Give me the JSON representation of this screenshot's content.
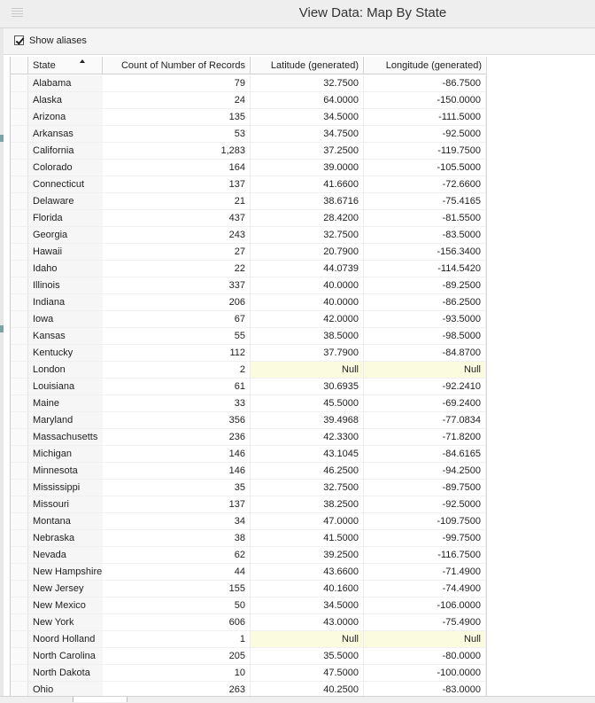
{
  "window": {
    "title": "View Data:  Map By State"
  },
  "toolbar": {
    "show_aliases_label": "Show aliases",
    "show_aliases_checked": true
  },
  "table": {
    "columns": [
      "State",
      "Count of Number of Records",
      "Latitude (generated)",
      "Longitude (generated)"
    ],
    "sorted_column": "State",
    "sort_direction": "ascending",
    "rows": [
      [
        "Alabama",
        "79",
        "32.7500",
        "-86.7500"
      ],
      [
        "Alaska",
        "24",
        "64.0000",
        "-150.0000"
      ],
      [
        "Arizona",
        "135",
        "34.5000",
        "-111.5000"
      ],
      [
        "Arkansas",
        "53",
        "34.7500",
        "-92.5000"
      ],
      [
        "California",
        "1,283",
        "37.2500",
        "-119.7500"
      ],
      [
        "Colorado",
        "164",
        "39.0000",
        "-105.5000"
      ],
      [
        "Connecticut",
        "137",
        "41.6600",
        "-72.6600"
      ],
      [
        "Delaware",
        "21",
        "38.6716",
        "-75.4165"
      ],
      [
        "Florida",
        "437",
        "28.4200",
        "-81.5500"
      ],
      [
        "Georgia",
        "243",
        "32.7500",
        "-83.5000"
      ],
      [
        "Hawaii",
        "27",
        "20.7900",
        "-156.3400"
      ],
      [
        "Idaho",
        "22",
        "44.0739",
        "-114.5420"
      ],
      [
        "Illinois",
        "337",
        "40.0000",
        "-89.2500"
      ],
      [
        "Indiana",
        "206",
        "40.0000",
        "-86.2500"
      ],
      [
        "Iowa",
        "67",
        "42.0000",
        "-93.5000"
      ],
      [
        "Kansas",
        "55",
        "38.5000",
        "-98.5000"
      ],
      [
        "Kentucky",
        "112",
        "37.7900",
        "-84.8700"
      ],
      [
        "London",
        "2",
        "Null",
        "Null"
      ],
      [
        "Louisiana",
        "61",
        "30.6935",
        "-92.2410"
      ],
      [
        "Maine",
        "33",
        "45.5000",
        "-69.2400"
      ],
      [
        "Maryland",
        "356",
        "39.4968",
        "-77.0834"
      ],
      [
        "Massachusetts",
        "236",
        "42.3300",
        "-71.8200"
      ],
      [
        "Michigan",
        "146",
        "43.1045",
        "-84.6165"
      ],
      [
        "Minnesota",
        "146",
        "46.2500",
        "-94.2500"
      ],
      [
        "Mississippi",
        "35",
        "32.7500",
        "-89.7500"
      ],
      [
        "Missouri",
        "137",
        "38.2500",
        "-92.5000"
      ],
      [
        "Montana",
        "34",
        "47.0000",
        "-109.7500"
      ],
      [
        "Nebraska",
        "38",
        "41.5000",
        "-99.7500"
      ],
      [
        "Nevada",
        "62",
        "39.2500",
        "-116.7500"
      ],
      [
        "New Hampshire",
        "44",
        "43.6600",
        "-71.4900"
      ],
      [
        "New Jersey",
        "155",
        "40.1600",
        "-74.4900"
      ],
      [
        "New Mexico",
        "50",
        "34.5000",
        "-106.0000"
      ],
      [
        "New York",
        "606",
        "43.0000",
        "-75.4900"
      ],
      [
        "Noord Holland",
        "1",
        "Null",
        "Null"
      ],
      [
        "North Carolina",
        "205",
        "35.5000",
        "-80.0000"
      ],
      [
        "North Dakota",
        "10",
        "47.5000",
        "-100.0000"
      ],
      [
        "Ohio",
        "263",
        "40.2500",
        "-83.0000"
      ]
    ]
  },
  "colors": {
    "null_highlight": "#fbfbdf",
    "header_bg": "#fafafa",
    "title_bg": "#eeeeee"
  },
  "icons": {
    "sort": "sort-ascending-icon",
    "grip": "grip-icon",
    "checkbox": "checkbox-checked-icon"
  }
}
